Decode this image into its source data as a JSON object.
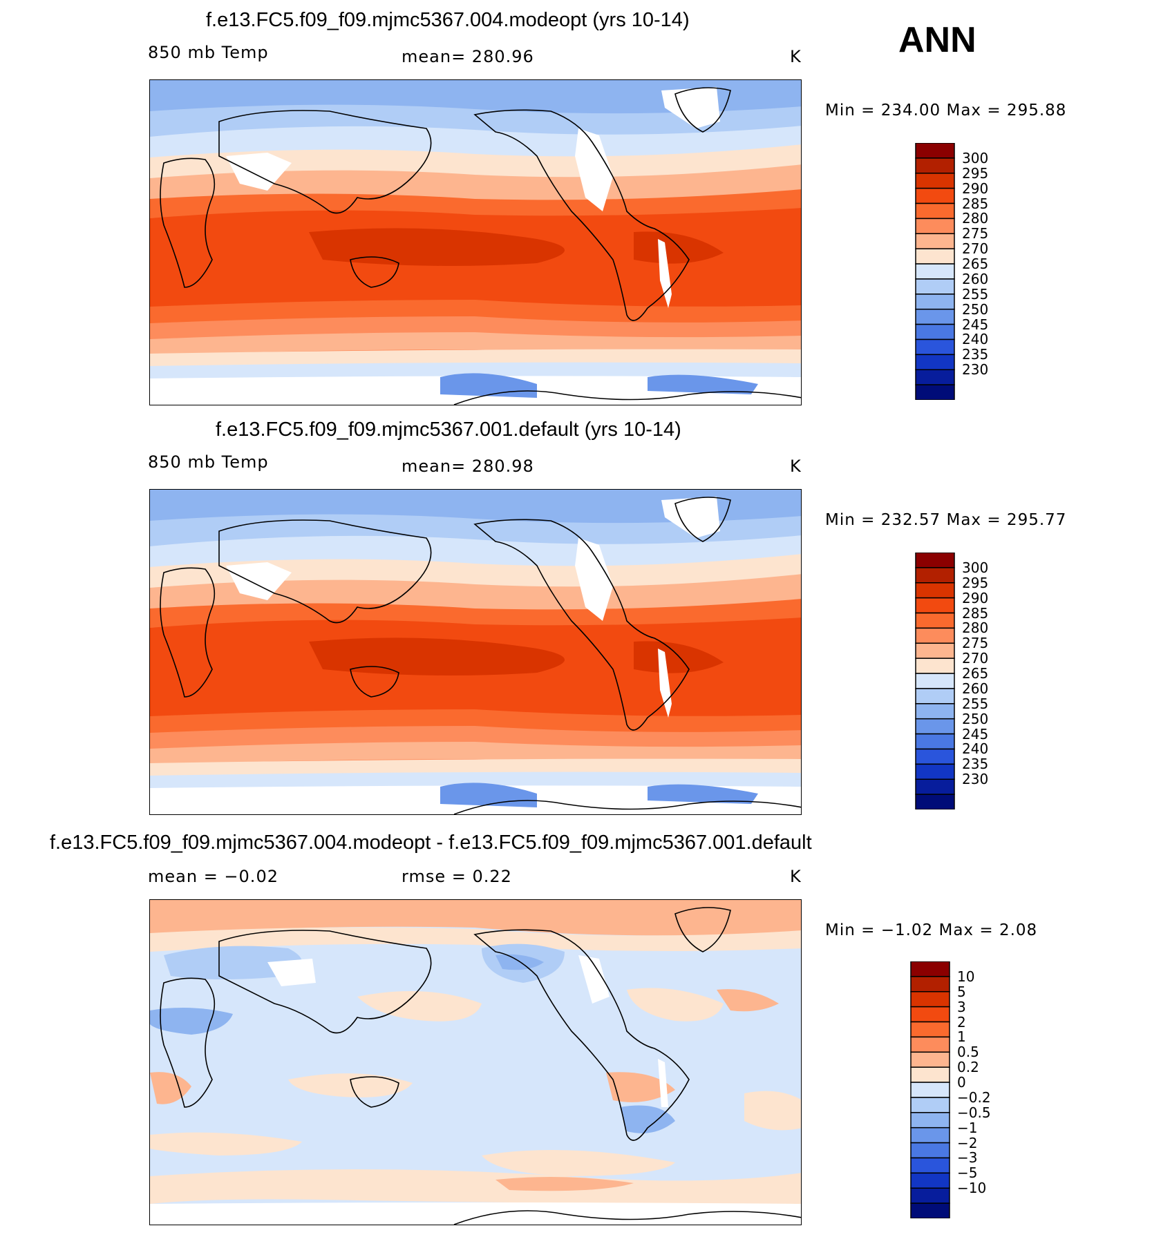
{
  "season": "ANN",
  "panels": [
    {
      "title": "f.e13.FC5.f09_f09.mjmc5367.004.modeopt (yrs 10-14)",
      "left_label": "850 mb Temp",
      "center_label": "mean=  280.96",
      "units": "K",
      "minmax": "Min  =  234.00  Max  =  295.88"
    },
    {
      "title": "f.e13.FC5.f09_f09.mjmc5367.001.default (yrs 10-14)",
      "left_label": "850 mb Temp",
      "center_label": "mean=  280.98",
      "units": "K",
      "minmax": "Min  =  232.57  Max  =  295.77"
    },
    {
      "title": "f.e13.FC5.f09_f09.mjmc5367.004.modeopt - f.e13.FC5.f09_f09.mjmc5367.001.default",
      "left_label": "mean  =    −0.02",
      "center_label": "rmse  =     0.22",
      "units": "K",
      "minmax": "Min  =    −1.02  Max  =     2.08"
    }
  ],
  "colorbars": {
    "temperature": {
      "colors": [
        "#8b0000",
        "#b22000",
        "#d93400",
        "#f24a10",
        "#fa6a2e",
        "#fd8c5c",
        "#fdb58f",
        "#fde4cf",
        "#d6e6fb",
        "#b0cdf6",
        "#8eb4f0",
        "#6a96ea",
        "#4a78e3",
        "#2a55dc",
        "#1236c4",
        "#071d9c",
        "#000c78"
      ],
      "labels": [
        "300",
        "295",
        "290",
        "285",
        "280",
        "275",
        "270",
        "265",
        "260",
        "255",
        "250",
        "245",
        "240",
        "235",
        "230"
      ]
    },
    "difference": {
      "colors": [
        "#8b0000",
        "#b22000",
        "#d93400",
        "#f24a10",
        "#fa6a2e",
        "#fd8c5c",
        "#fdb58f",
        "#fde4cf",
        "#d6e6fb",
        "#b0cdf6",
        "#8eb4f0",
        "#6a96ea",
        "#4a78e3",
        "#2a55dc",
        "#1236c4",
        "#071d9c",
        "#000c78"
      ],
      "labels": [
        "10",
        "5",
        "3",
        "2",
        "1",
        "0.5",
        "0.2",
        "0",
        "−0.2",
        "−0.5",
        "−1",
        "−2",
        "−3",
        "−5",
        "−10"
      ]
    }
  }
}
